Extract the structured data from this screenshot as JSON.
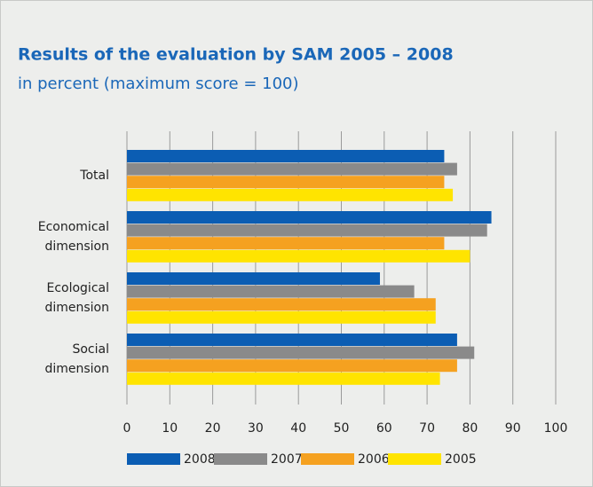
{
  "chart_data": {
    "type": "bar",
    "orientation": "horizontal",
    "title": "Results of the evaluation by SAM 2005 – 2008",
    "subtitle": "in percent (maximum score = 100)",
    "categories": [
      "Total",
      "Economical dimension",
      "Ecological dimension",
      "Social dimension"
    ],
    "series": [
      {
        "name": "2008",
        "color": "#0b5db3",
        "values": [
          74,
          85,
          59,
          77
        ]
      },
      {
        "name": "2007",
        "color": "#8a8a8a",
        "values": [
          77,
          84,
          67,
          81
        ]
      },
      {
        "name": "2006",
        "color": "#f5a120",
        "values": [
          74,
          74,
          72,
          77
        ]
      },
      {
        "name": "2005",
        "color": "#ffe400",
        "values": [
          76,
          80,
          72,
          73
        ]
      }
    ],
    "xlim": [
      0,
      100
    ],
    "xticks": [
      0,
      10,
      20,
      30,
      40,
      50,
      60,
      70,
      80,
      90,
      100
    ],
    "grid": true
  }
}
